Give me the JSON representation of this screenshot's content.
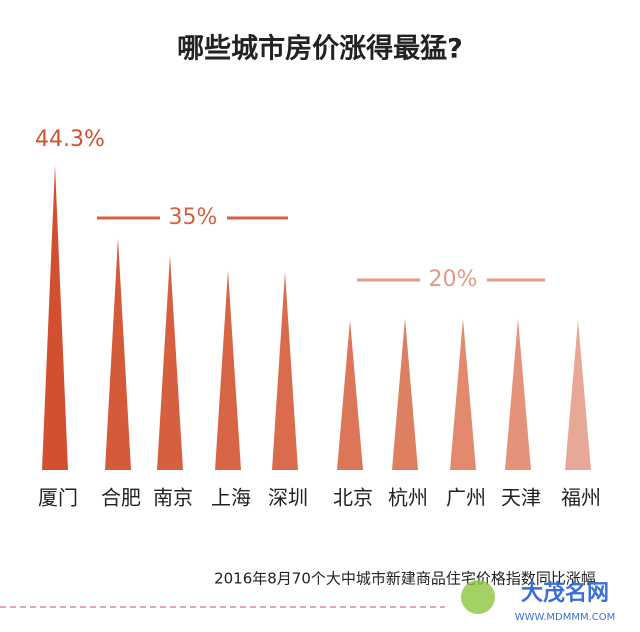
{
  "chart_data": {
    "type": "spike",
    "title": "哪些城市房价涨得最猛?",
    "categories": [
      "厦门",
      "合肥",
      "南京",
      "上海",
      "深圳",
      "北京",
      "杭州",
      "广州",
      "天津",
      "福州"
    ],
    "values": [
      44.3,
      33.7,
      31.2,
      29,
      28.8,
      21.8,
      22.1,
      22,
      22,
      21.8
    ],
    "value_labels": [
      "44.3%",
      null,
      null,
      null,
      null,
      null,
      null,
      null,
      null,
      null
    ],
    "colors": [
      "#d2502f",
      "#d45a3a",
      "#d65f40",
      "#d86646",
      "#da6c4d",
      "#dc7658",
      "#df7f62",
      "#e2896e",
      "#e4937a",
      "#e8a897"
    ],
    "ylim": [
      0,
      50
    ],
    "annotations": [
      "35%",
      "20%"
    ],
    "footnote": "2016年8月70个大中城市新建商品住宅价格指数同比涨幅",
    "watermark": [
      "大茂名网",
      "WWW.MDMMM.COM"
    ]
  }
}
